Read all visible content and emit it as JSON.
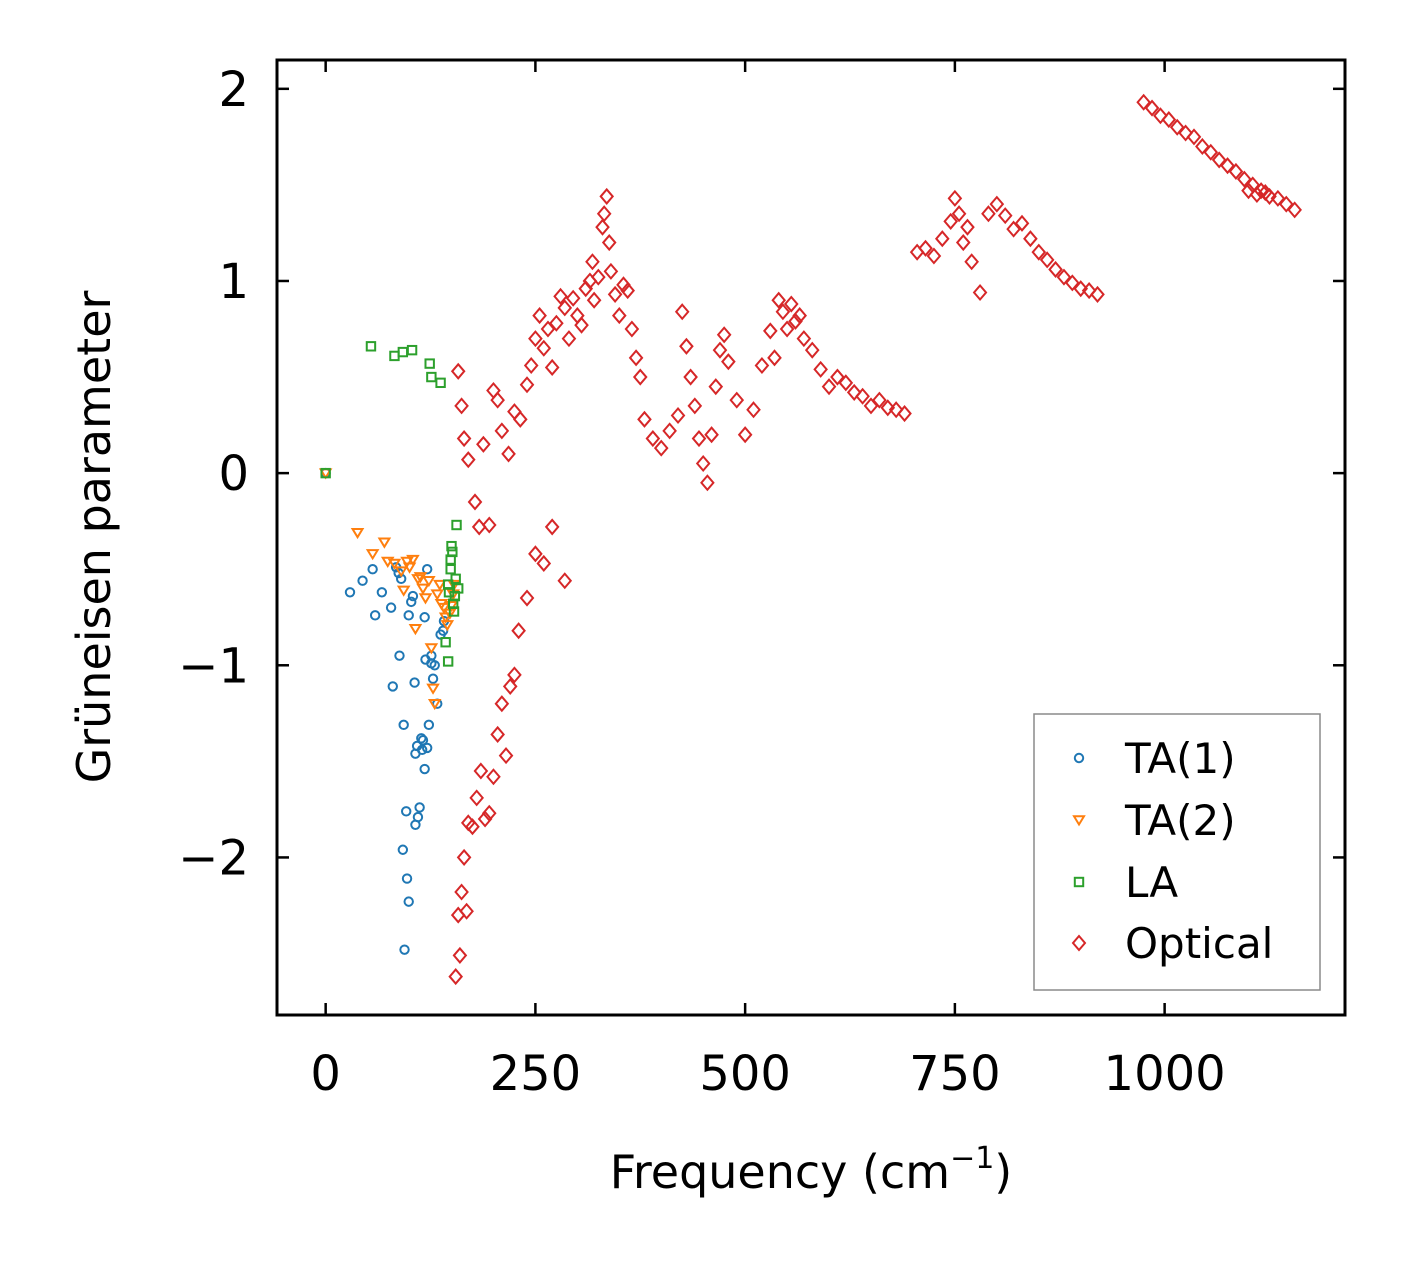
{
  "chart_data": {
    "type": "scatter",
    "title": "",
    "xlabel": "Frequency (cm",
    "xlabel_sup": "−1",
    "xlabel_end": ")",
    "ylabel": "Grüneisen parameter",
    "xlim": [
      -58,
      1215
    ],
    "ylim": [
      -2.82,
      2.15
    ],
    "xticks": [
      0,
      250,
      500,
      750,
      1000
    ],
    "xtick_labels": [
      "0",
      "250",
      "500",
      "750",
      "1000"
    ],
    "yticks": [
      -2,
      -1,
      0,
      1,
      2
    ],
    "ytick_labels": [
      "−2",
      "−1",
      "0",
      "1",
      "2"
    ],
    "legend_position": "bottom-right",
    "series": [
      {
        "name": "TA(1)",
        "marker": "circle",
        "color": "#1f77b4",
        "points": [
          [
            0,
            0
          ],
          [
            29,
            -0.62
          ],
          [
            44,
            -0.56
          ],
          [
            56,
            -0.5
          ],
          [
            59,
            -0.74
          ],
          [
            67,
            -0.62
          ],
          [
            78,
            -0.7
          ],
          [
            84,
            -0.49
          ],
          [
            87,
            -0.52
          ],
          [
            90,
            -0.55
          ],
          [
            80,
            -1.11
          ],
          [
            88,
            -0.95
          ],
          [
            93,
            -1.31
          ],
          [
            96,
            -1.76
          ],
          [
            99,
            -0.74
          ],
          [
            102,
            -0.67
          ],
          [
            104,
            -0.64
          ],
          [
            106,
            -1.09
          ],
          [
            107,
            -1.46
          ],
          [
            109,
            -1.42
          ],
          [
            110,
            -1.79
          ],
          [
            112,
            -1.74
          ],
          [
            114,
            -1.38
          ],
          [
            116,
            -1.39
          ],
          [
            118,
            -1.54
          ],
          [
            119,
            -0.97
          ],
          [
            121,
            -0.5
          ],
          [
            121,
            -1.43
          ],
          [
            123,
            -1.31
          ],
          [
            126,
            -0.99
          ],
          [
            128,
            -1.07
          ],
          [
            130,
            -1.0
          ],
          [
            133,
            -1.2
          ],
          [
            137,
            -0.84
          ],
          [
            140,
            -0.82
          ],
          [
            141,
            -0.77
          ],
          [
            92,
            -1.96
          ],
          [
            97,
            -2.11
          ],
          [
            99,
            -2.23
          ],
          [
            94,
            -2.48
          ],
          [
            107,
            -1.83
          ],
          [
            115,
            -1.44
          ],
          [
            118,
            -0.75
          ],
          [
            126,
            -0.95
          ]
        ]
      },
      {
        "name": "TA(2)",
        "marker": "triangle-down",
        "color": "#ff7f0e",
        "points": [
          [
            0,
            0
          ],
          [
            38,
            -0.31
          ],
          [
            56,
            -0.42
          ],
          [
            70,
            -0.36
          ],
          [
            74,
            -0.46
          ],
          [
            82,
            -0.47
          ],
          [
            90,
            -0.51
          ],
          [
            93,
            -0.61
          ],
          [
            97,
            -0.46
          ],
          [
            100,
            -0.49
          ],
          [
            104,
            -0.45
          ],
          [
            107,
            -0.81
          ],
          [
            110,
            -0.55
          ],
          [
            113,
            -0.54
          ],
          [
            116,
            -0.6
          ],
          [
            119,
            -0.65
          ],
          [
            123,
            -0.56
          ],
          [
            126,
            -0.91
          ],
          [
            128,
            -1.12
          ],
          [
            130,
            -1.2
          ],
          [
            133,
            -0.63
          ],
          [
            136,
            -0.58
          ],
          [
            138,
            -0.68
          ],
          [
            141,
            -0.7
          ],
          [
            143,
            -0.75
          ],
          [
            145,
            -0.79
          ],
          [
            148,
            -0.73
          ],
          [
            150,
            -0.69
          ],
          [
            152,
            -0.63
          ],
          [
            153,
            -0.58
          ]
        ]
      },
      {
        "name": "LA",
        "marker": "square",
        "color": "#2ca02c",
        "points": [
          [
            0,
            0
          ],
          [
            54,
            0.66
          ],
          [
            82,
            0.61
          ],
          [
            92,
            0.63
          ],
          [
            103,
            0.64
          ],
          [
            124,
            0.57
          ],
          [
            126,
            0.5
          ],
          [
            137,
            0.47
          ],
          [
            146,
            -0.58
          ],
          [
            147,
            -0.62
          ],
          [
            149,
            -0.5
          ],
          [
            150,
            -0.38
          ],
          [
            152,
            -0.68
          ],
          [
            154,
            -0.64
          ],
          [
            155,
            -0.55
          ],
          [
            156,
            -0.27
          ],
          [
            158,
            -0.6
          ],
          [
            146,
            -0.98
          ],
          [
            143,
            -0.88
          ],
          [
            151,
            -0.41
          ],
          [
            153,
            -0.72
          ],
          [
            149,
            -0.45
          ]
        ]
      },
      {
        "name": "Optical",
        "marker": "diamond",
        "color": "#d62728",
        "points": [
          [
            155,
            -2.62
          ],
          [
            158,
            -2.3
          ],
          [
            160,
            -2.51
          ],
          [
            162,
            -2.18
          ],
          [
            165,
            -2.0
          ],
          [
            168,
            -2.28
          ],
          [
            170,
            -1.82
          ],
          [
            175,
            -1.84
          ],
          [
            180,
            -1.69
          ],
          [
            185,
            -1.55
          ],
          [
            190,
            -1.8
          ],
          [
            195,
            -1.77
          ],
          [
            200,
            -1.58
          ],
          [
            205,
            -1.36
          ],
          [
            210,
            -1.2
          ],
          [
            215,
            -1.47
          ],
          [
            220,
            -1.11
          ],
          [
            225,
            -1.05
          ],
          [
            230,
            -0.82
          ],
          [
            240,
            -0.65
          ],
          [
            250,
            -0.42
          ],
          [
            260,
            -0.47
          ],
          [
            270,
            -0.28
          ],
          [
            285,
            -0.56
          ],
          [
            158,
            0.53
          ],
          [
            162,
            0.35
          ],
          [
            165,
            0.18
          ],
          [
            170,
            0.07
          ],
          [
            178,
            -0.15
          ],
          [
            183,
            -0.28
          ],
          [
            188,
            0.15
          ],
          [
            195,
            -0.27
          ],
          [
            200,
            0.43
          ],
          [
            205,
            0.38
          ],
          [
            210,
            0.22
          ],
          [
            218,
            0.1
          ],
          [
            225,
            0.32
          ],
          [
            232,
            0.28
          ],
          [
            240,
            0.46
          ],
          [
            245,
            0.56
          ],
          [
            250,
            0.7
          ],
          [
            255,
            0.82
          ],
          [
            260,
            0.65
          ],
          [
            265,
            0.75
          ],
          [
            270,
            0.55
          ],
          [
            275,
            0.78
          ],
          [
            280,
            0.92
          ],
          [
            285,
            0.86
          ],
          [
            290,
            0.7
          ],
          [
            295,
            0.91
          ],
          [
            300,
            0.82
          ],
          [
            305,
            0.77
          ],
          [
            310,
            0.96
          ],
          [
            315,
            1.0
          ],
          [
            318,
            1.1
          ],
          [
            320,
            0.9
          ],
          [
            325,
            1.02
          ],
          [
            330,
            1.28
          ],
          [
            332,
            1.35
          ],
          [
            335,
            1.44
          ],
          [
            338,
            1.2
          ],
          [
            340,
            1.05
          ],
          [
            345,
            0.93
          ],
          [
            350,
            0.82
          ],
          [
            355,
            0.98
          ],
          [
            360,
            0.95
          ],
          [
            365,
            0.75
          ],
          [
            370,
            0.6
          ],
          [
            375,
            0.5
          ],
          [
            380,
            0.28
          ],
          [
            390,
            0.18
          ],
          [
            400,
            0.13
          ],
          [
            410,
            0.22
          ],
          [
            420,
            0.3
          ],
          [
            425,
            0.84
          ],
          [
            430,
            0.66
          ],
          [
            435,
            0.5
          ],
          [
            440,
            0.35
          ],
          [
            445,
            0.18
          ],
          [
            450,
            0.05
          ],
          [
            455,
            -0.05
          ],
          [
            460,
            0.2
          ],
          [
            465,
            0.45
          ],
          [
            470,
            0.64
          ],
          [
            475,
            0.72
          ],
          [
            480,
            0.58
          ],
          [
            490,
            0.38
          ],
          [
            500,
            0.2
          ],
          [
            510,
            0.33
          ],
          [
            520,
            0.56
          ],
          [
            530,
            0.74
          ],
          [
            535,
            0.6
          ],
          [
            540,
            0.9
          ],
          [
            545,
            0.84
          ],
          [
            550,
            0.75
          ],
          [
            555,
            0.88
          ],
          [
            560,
            0.79
          ],
          [
            565,
            0.82
          ],
          [
            570,
            0.7
          ],
          [
            580,
            0.64
          ],
          [
            590,
            0.54
          ],
          [
            600,
            0.45
          ],
          [
            610,
            0.5
          ],
          [
            620,
            0.47
          ],
          [
            630,
            0.42
          ],
          [
            640,
            0.4
          ],
          [
            650,
            0.35
          ],
          [
            660,
            0.38
          ],
          [
            670,
            0.34
          ],
          [
            680,
            0.33
          ],
          [
            690,
            0.31
          ],
          [
            705,
            1.15
          ],
          [
            715,
            1.17
          ],
          [
            725,
            1.13
          ],
          [
            735,
            1.22
          ],
          [
            745,
            1.31
          ],
          [
            750,
            1.43
          ],
          [
            755,
            1.35
          ],
          [
            760,
            1.2
          ],
          [
            765,
            1.28
          ],
          [
            770,
            1.1
          ],
          [
            780,
            0.94
          ],
          [
            790,
            1.35
          ],
          [
            800,
            1.4
          ],
          [
            810,
            1.34
          ],
          [
            820,
            1.27
          ],
          [
            830,
            1.3
          ],
          [
            840,
            1.22
          ],
          [
            850,
            1.15
          ],
          [
            860,
            1.11
          ],
          [
            870,
            1.06
          ],
          [
            880,
            1.02
          ],
          [
            890,
            0.99
          ],
          [
            900,
            0.96
          ],
          [
            910,
            0.95
          ],
          [
            920,
            0.93
          ],
          [
            975,
            1.93
          ],
          [
            985,
            1.9
          ],
          [
            995,
            1.86
          ],
          [
            1005,
            1.84
          ],
          [
            1015,
            1.8
          ],
          [
            1025,
            1.77
          ],
          [
            1035,
            1.75
          ],
          [
            1045,
            1.7
          ],
          [
            1055,
            1.67
          ],
          [
            1065,
            1.63
          ],
          [
            1075,
            1.6
          ],
          [
            1085,
            1.57
          ],
          [
            1095,
            1.53
          ],
          [
            1105,
            1.5
          ],
          [
            1115,
            1.47
          ],
          [
            1125,
            1.44
          ],
          [
            1135,
            1.43
          ],
          [
            1145,
            1.4
          ],
          [
            1155,
            1.37
          ],
          [
            1100,
            1.47
          ],
          [
            1110,
            1.45
          ],
          [
            1120,
            1.46
          ]
        ]
      }
    ]
  }
}
